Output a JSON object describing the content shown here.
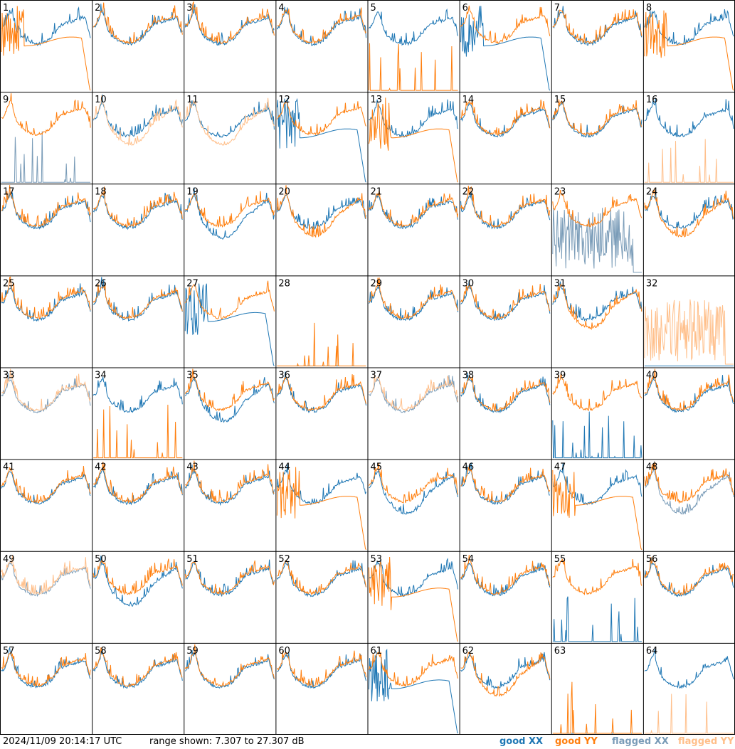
{
  "chart_data": {
    "type": "line",
    "grid": {
      "rows": 8,
      "cols": 8
    },
    "panels": [
      {
        "id": "1",
        "xx": "good",
        "yy": "good",
        "xx_shape": "normal",
        "yy_shape": "drop"
      },
      {
        "id": "2",
        "xx": "good",
        "yy": "good",
        "xx_shape": "normal",
        "yy_shape": "normal"
      },
      {
        "id": "3",
        "xx": "good",
        "yy": "good",
        "xx_shape": "normal",
        "yy_shape": "normal"
      },
      {
        "id": "4",
        "xx": "good",
        "yy": "good",
        "xx_shape": "normal",
        "yy_shape": "normal"
      },
      {
        "id": "5",
        "xx": "good",
        "yy": "good",
        "xx_shape": "normal",
        "yy_shape": "spikes"
      },
      {
        "id": "6",
        "xx": "good",
        "yy": "good",
        "xx_shape": "drop",
        "yy_shape": "normal"
      },
      {
        "id": "7",
        "xx": "good",
        "yy": "good",
        "xx_shape": "normal",
        "yy_shape": "normal"
      },
      {
        "id": "8",
        "xx": "good",
        "yy": "good",
        "xx_shape": "normal",
        "yy_shape": "drop"
      },
      {
        "id": "9",
        "xx": "flagged",
        "yy": "good",
        "xx_shape": "spikes",
        "yy_shape": "normal"
      },
      {
        "id": "10",
        "xx": "good",
        "yy": "flagged",
        "xx_shape": "normal",
        "yy_shape": "low"
      },
      {
        "id": "11",
        "xx": "good",
        "yy": "flagged",
        "xx_shape": "normal",
        "yy_shape": "low"
      },
      {
        "id": "12",
        "xx": "good",
        "yy": "good",
        "xx_shape": "drop",
        "yy_shape": "normal"
      },
      {
        "id": "13",
        "xx": "good",
        "yy": "good",
        "xx_shape": "normal",
        "yy_shape": "drop"
      },
      {
        "id": "14",
        "xx": "good",
        "yy": "good",
        "xx_shape": "normal",
        "yy_shape": "normal"
      },
      {
        "id": "15",
        "xx": "good",
        "yy": "good",
        "xx_shape": "normal",
        "yy_shape": "normal"
      },
      {
        "id": "16",
        "xx": "good",
        "yy": "flagged",
        "xx_shape": "normal",
        "yy_shape": "spikes"
      },
      {
        "id": "17",
        "xx": "good",
        "yy": "good",
        "xx_shape": "normal",
        "yy_shape": "normal"
      },
      {
        "id": "18",
        "xx": "good",
        "yy": "good",
        "xx_shape": "normal",
        "yy_shape": "normal"
      },
      {
        "id": "19",
        "xx": "good",
        "yy": "good",
        "xx_shape": "low",
        "yy_shape": "normal"
      },
      {
        "id": "20",
        "xx": "good",
        "yy": "good",
        "xx_shape": "normal",
        "yy_shape": "low"
      },
      {
        "id": "21",
        "xx": "good",
        "yy": "good",
        "xx_shape": "normal",
        "yy_shape": "normal"
      },
      {
        "id": "22",
        "xx": "good",
        "yy": "good",
        "xx_shape": "normal",
        "yy_shape": "normal"
      },
      {
        "id": "23",
        "xx": "flagged",
        "yy": "good",
        "xx_shape": "noise",
        "yy_shape": "normal"
      },
      {
        "id": "24",
        "xx": "good",
        "yy": "good",
        "xx_shape": "normal",
        "yy_shape": "low"
      },
      {
        "id": "25",
        "xx": "good",
        "yy": "good",
        "xx_shape": "normal",
        "yy_shape": "normal"
      },
      {
        "id": "26",
        "xx": "good",
        "yy": "good",
        "xx_shape": "normal",
        "yy_shape": "normal"
      },
      {
        "id": "27",
        "xx": "good",
        "yy": "good",
        "xx_shape": "drop",
        "yy_shape": "normal"
      },
      {
        "id": "28",
        "xx": "good",
        "yy": "good",
        "xx_shape": "none",
        "yy_shape": "spikes"
      },
      {
        "id": "29",
        "xx": "good",
        "yy": "good",
        "xx_shape": "normal",
        "yy_shape": "normal"
      },
      {
        "id": "30",
        "xx": "good",
        "yy": "good",
        "xx_shape": "normal",
        "yy_shape": "normal"
      },
      {
        "id": "31",
        "xx": "good",
        "yy": "good",
        "xx_shape": "normal",
        "yy_shape": "low"
      },
      {
        "id": "32",
        "xx": "good",
        "yy": "flagged",
        "xx_shape": "none",
        "yy_shape": "noise"
      },
      {
        "id": "33",
        "xx": "flagged",
        "yy": "flagged",
        "xx_shape": "normal",
        "yy_shape": "normal"
      },
      {
        "id": "34",
        "xx": "good",
        "yy": "good",
        "xx_shape": "normal",
        "yy_shape": "spikes"
      },
      {
        "id": "35",
        "xx": "good",
        "yy": "good",
        "xx_shape": "low",
        "yy_shape": "normal"
      },
      {
        "id": "36",
        "xx": "good",
        "yy": "good",
        "xx_shape": "normal",
        "yy_shape": "normal"
      },
      {
        "id": "37",
        "xx": "flagged",
        "yy": "flagged",
        "xx_shape": "normal",
        "yy_shape": "normal"
      },
      {
        "id": "38",
        "xx": "good",
        "yy": "good",
        "xx_shape": "normal",
        "yy_shape": "normal"
      },
      {
        "id": "39",
        "xx": "good",
        "yy": "good",
        "xx_shape": "spikes",
        "yy_shape": "normal"
      },
      {
        "id": "40",
        "xx": "good",
        "yy": "good",
        "xx_shape": "normal",
        "yy_shape": "normal"
      },
      {
        "id": "41",
        "xx": "good",
        "yy": "good",
        "xx_shape": "normal",
        "yy_shape": "normal"
      },
      {
        "id": "42",
        "xx": "good",
        "yy": "good",
        "xx_shape": "normal",
        "yy_shape": "normal"
      },
      {
        "id": "43",
        "xx": "good",
        "yy": "good",
        "xx_shape": "normal",
        "yy_shape": "normal"
      },
      {
        "id": "44",
        "xx": "good",
        "yy": "good",
        "xx_shape": "normal",
        "yy_shape": "drop"
      },
      {
        "id": "45",
        "xx": "good",
        "yy": "good",
        "xx_shape": "low",
        "yy_shape": "normal"
      },
      {
        "id": "46",
        "xx": "good",
        "yy": "good",
        "xx_shape": "normal",
        "yy_shape": "normal"
      },
      {
        "id": "47",
        "xx": "good",
        "yy": "good",
        "xx_shape": "normal",
        "yy_shape": "drop"
      },
      {
        "id": "48",
        "xx": "flagged",
        "yy": "good",
        "xx_shape": "low",
        "yy_shape": "normal"
      },
      {
        "id": "49",
        "xx": "flagged",
        "yy": "flagged",
        "xx_shape": "normal",
        "yy_shape": "normal"
      },
      {
        "id": "50",
        "xx": "good",
        "yy": "good",
        "xx_shape": "low",
        "yy_shape": "normal"
      },
      {
        "id": "51",
        "xx": "good",
        "yy": "good",
        "xx_shape": "normal",
        "yy_shape": "normal"
      },
      {
        "id": "52",
        "xx": "good",
        "yy": "good",
        "xx_shape": "normal",
        "yy_shape": "normal"
      },
      {
        "id": "53",
        "xx": "good",
        "yy": "good",
        "xx_shape": "normal",
        "yy_shape": "drop"
      },
      {
        "id": "54",
        "xx": "good",
        "yy": "good",
        "xx_shape": "normal",
        "yy_shape": "normal"
      },
      {
        "id": "55",
        "xx": "good",
        "yy": "good",
        "xx_shape": "spikes",
        "yy_shape": "normal"
      },
      {
        "id": "56",
        "xx": "good",
        "yy": "good",
        "xx_shape": "normal",
        "yy_shape": "normal"
      },
      {
        "id": "57",
        "xx": "good",
        "yy": "good",
        "xx_shape": "normal",
        "yy_shape": "normal"
      },
      {
        "id": "58",
        "xx": "good",
        "yy": "good",
        "xx_shape": "normal",
        "yy_shape": "normal"
      },
      {
        "id": "59",
        "xx": "good",
        "yy": "good",
        "xx_shape": "normal",
        "yy_shape": "normal"
      },
      {
        "id": "60",
        "xx": "good",
        "yy": "good",
        "xx_shape": "normal",
        "yy_shape": "normal"
      },
      {
        "id": "61",
        "xx": "good",
        "yy": "good",
        "xx_shape": "drop",
        "yy_shape": "normal"
      },
      {
        "id": "62",
        "xx": "good",
        "yy": "good",
        "xx_shape": "normal",
        "yy_shape": "low"
      },
      {
        "id": "63",
        "xx": "good",
        "yy": "good",
        "xx_shape": "none",
        "yy_shape": "spikes"
      },
      {
        "id": "64",
        "xx": "good",
        "yy": "flagged",
        "xx_shape": "normal",
        "yy_shape": "spikes"
      }
    ],
    "colors": {
      "good_xx": "#1f77b4",
      "good_yy": "#ff7f0e",
      "flagged_xx": "#7a9cb8",
      "flagged_yy": "#ffbf8a"
    }
  },
  "footer": {
    "timestamp": "2024/11/09 20:14:17 UTC",
    "range": "range shown: 7.307 to 27.307 dB"
  },
  "legend": {
    "good_xx": "good XX",
    "good_yy": "good YY",
    "flagged_xx": "flagged XX",
    "flagged_yy": "flagged YY"
  }
}
